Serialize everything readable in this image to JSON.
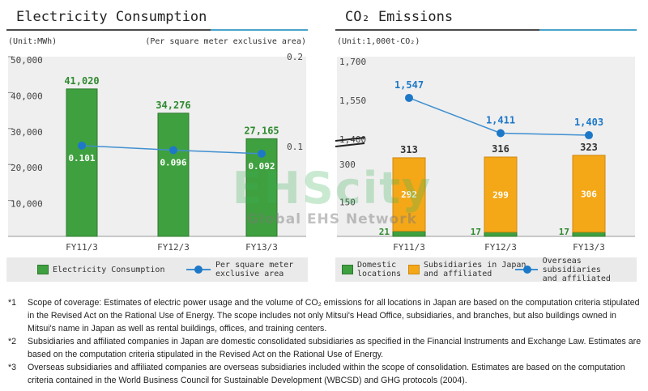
{
  "chart_data": [
    {
      "type": "bar",
      "title": "Electricity Consumption",
      "unit_left": "(Unit:MWh)",
      "unit_right": "(Per square meter exclusive area)",
      "categories": [
        "FY11/3",
        "FY12/3",
        "FY13/3"
      ],
      "series": [
        {
          "name": "Electricity Consumption",
          "kind": "bar",
          "axis": "left",
          "color": "#3fa03f",
          "values": [
            41020,
            34276,
            27165
          ],
          "labels": [
            "41,020",
            "34,276",
            "27,165"
          ]
        },
        {
          "name": "Per square meter exclusive area",
          "kind": "line",
          "axis": "right",
          "color": "#3f8fd0",
          "values": [
            0.101,
            0.096,
            0.092
          ],
          "labels": [
            "0.101",
            "0.096",
            "0.092"
          ]
        }
      ],
      "ylim": [
        0,
        50000
      ],
      "yticks": [
        "50,000",
        "40,000",
        "30,000",
        "20,000",
        "10,000"
      ],
      "y2lim": [
        0,
        0.2
      ],
      "y2ticks": [
        "0.2",
        "0.1"
      ]
    },
    {
      "type": "bar",
      "title": "CO₂ Emissions",
      "unit_left": "(Unit:1,000t-CO₂)",
      "categories": [
        "FY11/3",
        "FY12/3",
        "FY13/3"
      ],
      "series": [
        {
          "name": "Domestic locations",
          "kind": "bar-stacked",
          "color": "#3fa03f",
          "values": [
            21,
            17,
            17
          ]
        },
        {
          "name": "Subsidiaries in Japan and affiliated",
          "kind": "bar-stacked",
          "color": "#f4a817",
          "values": [
            292,
            299,
            306
          ]
        },
        {
          "name": "Overseas subsidiaries and affiliated",
          "kind": "line",
          "color": "#3f8fd0",
          "values": [
            1547,
            1411,
            1403
          ],
          "labels": [
            "1,547",
            "1,411",
            "1,403"
          ]
        }
      ],
      "totals": [
        "313",
        "316",
        "323"
      ],
      "yticks_upper": [
        "1,700",
        "1,550",
        "1,400"
      ],
      "yticks_lower": [
        "300",
        "150"
      ],
      "axis_break": true
    }
  ],
  "legend_left": {
    "bar": "Electricity Consumption",
    "line_1": "Per square meter",
    "line_2": "exclusive area"
  },
  "legend_right": {
    "green_1": "Domestic",
    "green_2": "locations",
    "orange_1": "Subsidiaries in Japan",
    "orange_2": "and affiliated",
    "line_1": "Overseas subsidiaries",
    "line_2": "and affiliated"
  },
  "watermark": {
    "big": "EHScity",
    "small": "Global EHS Network"
  },
  "notes": [
    {
      "mark": "*1",
      "text": "Scope of coverage: Estimates of electric power usage and the volume of CO₂ emissions for all locations in Japan are based on the computation criteria stipulated in the Revised Act on the Rational Use of Energy. The scope includes not only Mitsui's Head Office, subsidiaries, and branches, but also buildings owned in Mitsui's name in Japan as well as rental buildings, offices, and training centers."
    },
    {
      "mark": "*2",
      "text": "Subsidiaries and affiliated companies in Japan are domestic consolidated subsidiaries as specified in the Financial Instruments and Exchange Law. Estimates are based on the computation criteria stipulated in the Revised Act on the Rational Use of Energy."
    },
    {
      "mark": "*3",
      "text": " Overseas subsidiaries and affiliated companies are overseas subsidiaries included within the scope of consolidation. Estimates are based on the computation criteria contained in the World Business Council for Sustainable Development (WBCSD) and GHG protocols (2004)."
    }
  ],
  "colors": {
    "green": "#3fa03f",
    "orange": "#f4a817",
    "line": "#3f8fd0",
    "point": "#1d78c8",
    "plot_bg": "#efefef"
  }
}
